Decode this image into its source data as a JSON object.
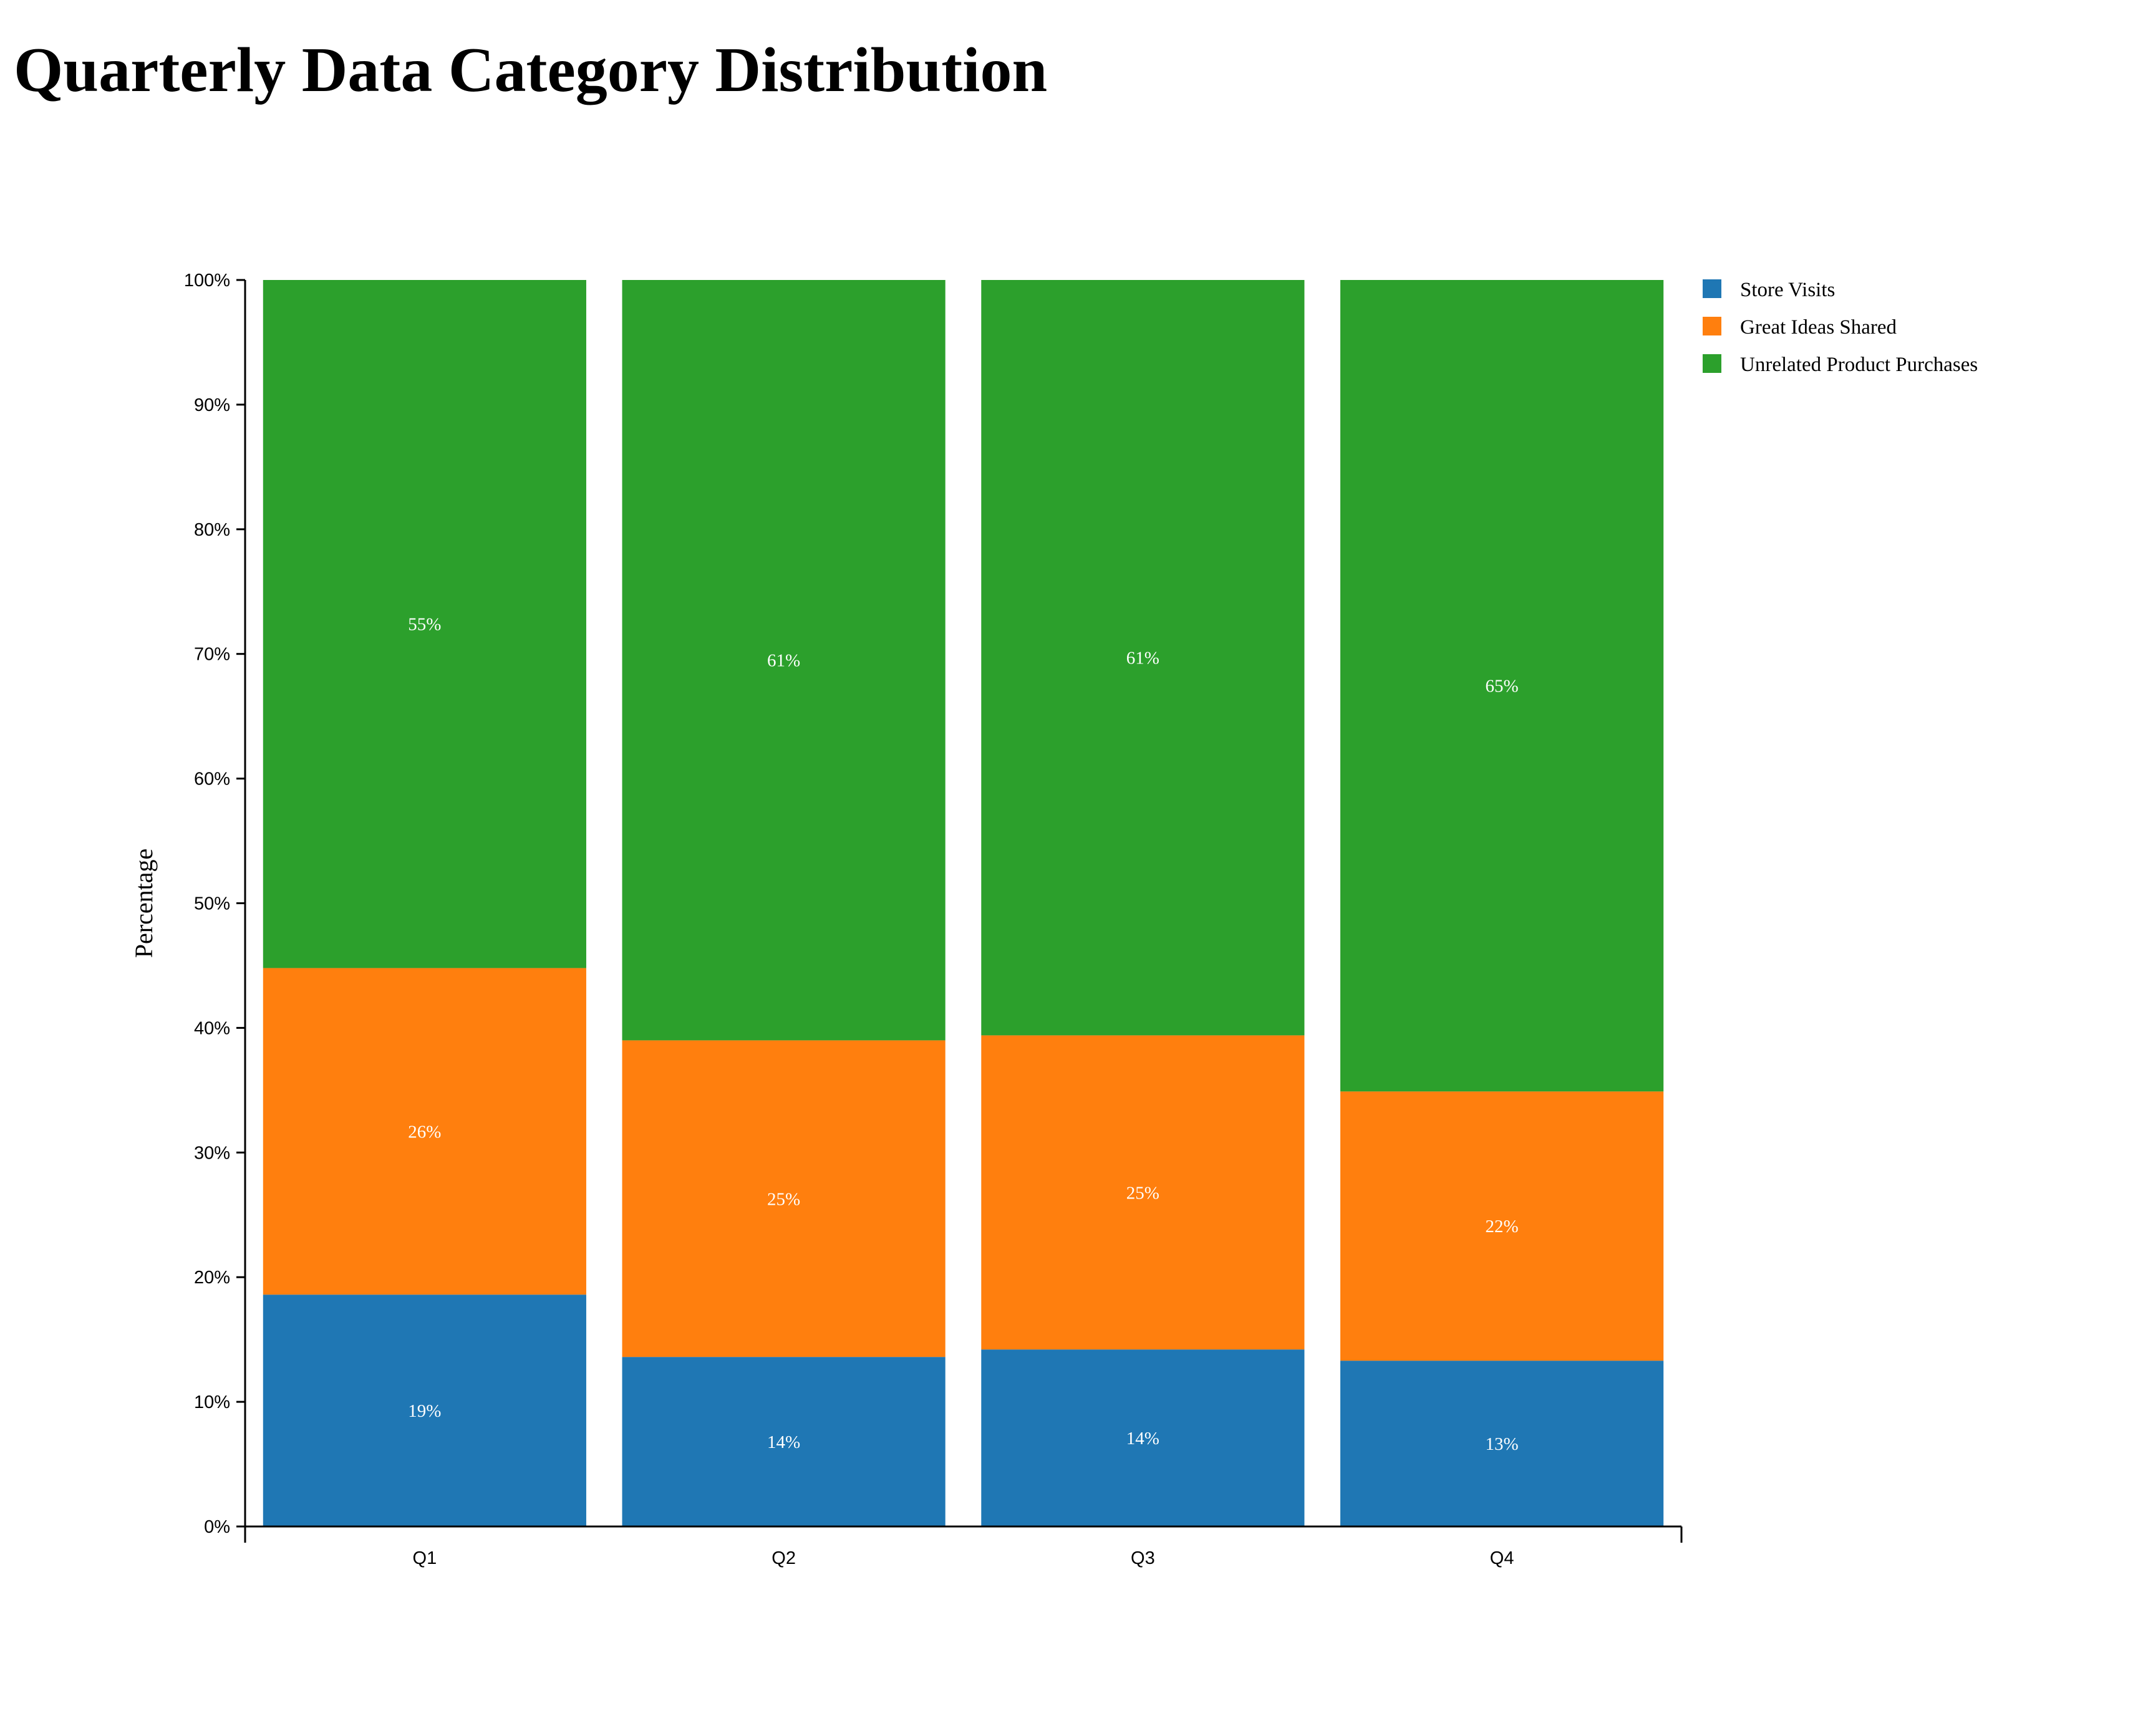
{
  "page": {
    "title": "Quarterly Data Category Distribution"
  },
  "chart_data": {
    "type": "bar",
    "stacked": true,
    "normalized": true,
    "title": "Quarterly Data Category Distribution",
    "xlabel": "",
    "ylabel": "Percentage",
    "ylim": [
      0,
      100
    ],
    "y_tick_format": "percent",
    "y_ticks": [
      "0%",
      "10%",
      "20%",
      "30%",
      "40%",
      "50%",
      "60%",
      "70%",
      "80%",
      "90%",
      "100%"
    ],
    "categories": [
      "Q1",
      "Q2",
      "Q3",
      "Q4"
    ],
    "legend_position": "top-right",
    "grid": false,
    "series": [
      {
        "name": "Store Visits",
        "color": "#1f77b4",
        "values": [
          18.6,
          13.6,
          14.2,
          13.3
        ],
        "labels": [
          "19%",
          "14%",
          "14%",
          "13%"
        ]
      },
      {
        "name": "Great Ideas Shared",
        "color": "#ff7f0e",
        "values": [
          26.2,
          25.4,
          25.2,
          21.6
        ],
        "labels": [
          "26%",
          "25%",
          "25%",
          "22%"
        ]
      },
      {
        "name": "Unrelated Product Purchases",
        "color": "#2ca02c",
        "values": [
          55.2,
          61.0,
          60.6,
          65.1
        ],
        "labels": [
          "55%",
          "61%",
          "61%",
          "65%"
        ]
      }
    ]
  }
}
